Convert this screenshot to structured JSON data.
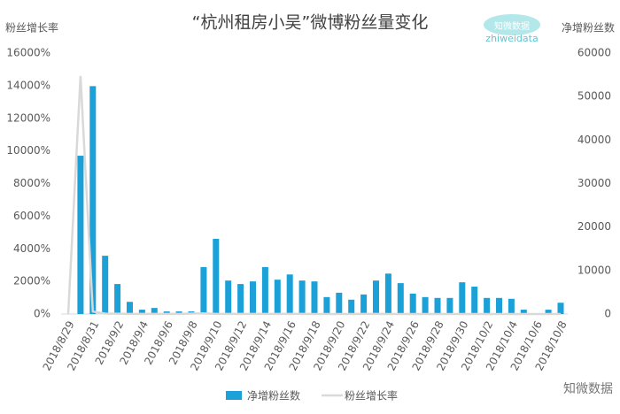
{
  "chart_data": {
    "type": "bar-line",
    "title": "“杭州租房小吴”微博粉丝量变化",
    "y_label": "粉丝增长率",
    "y2_label": "净增粉丝数",
    "categories": [
      "2018/8/29",
      null,
      "2018/8/31",
      null,
      "2018/9/2",
      null,
      "2018/9/4",
      null,
      "2018/9/6",
      null,
      "2018/9/8",
      null,
      "2018/9/10",
      null,
      "2018/9/12",
      null,
      "2018/9/14",
      null,
      "2018/9/16",
      null,
      "2018/9/18",
      null,
      "2018/9/20",
      null,
      "2018/9/22",
      null,
      "2018/9/24",
      null,
      "2018/9/26",
      null,
      "2018/9/28",
      null,
      "2018/9/30",
      null,
      "2018/10/2",
      null,
      "2018/10/4",
      null,
      "2018/10/6",
      null,
      "2018/10/8"
    ],
    "series": [
      {
        "name": "净增粉丝数",
        "type": "bar",
        "axis": "y2",
        "color": "#1ba1d8",
        "values": [
          0,
          36400,
          52400,
          13400,
          6900,
          2800,
          1000,
          1400,
          600,
          600,
          600,
          10800,
          17300,
          7700,
          6900,
          7500,
          10800,
          7900,
          9100,
          7700,
          7500,
          3900,
          4900,
          3300,
          4500,
          7700,
          9300,
          7100,
          4700,
          3900,
          3700,
          3700,
          7300,
          6300,
          3700,
          3700,
          3500,
          1000,
          0,
          1000,
          2600
        ]
      },
      {
        "name": "粉丝增长率",
        "type": "line",
        "axis": "y",
        "color": "#d9d9d9",
        "values": [
          0,
          14600,
          150,
          30,
          20,
          10,
          5,
          5,
          5,
          5,
          30,
          40,
          10,
          5,
          5,
          10,
          5,
          5,
          5,
          5,
          3,
          3,
          3,
          3,
          5,
          5,
          3,
          3,
          2,
          2,
          2,
          3,
          3,
          2,
          2,
          2,
          1,
          0,
          1,
          0,
          1
        ]
      }
    ],
    "ylim": [
      0,
      16000
    ],
    "yticks": [
      {
        "value": 0,
        "label": "0%"
      },
      {
        "value": 2000,
        "label": "2000%"
      },
      {
        "value": 4000,
        "label": "4000%"
      },
      {
        "value": 6000,
        "label": "6000%"
      },
      {
        "value": 8000,
        "label": "8000%"
      },
      {
        "value": 10000,
        "label": "10000%"
      },
      {
        "value": 12000,
        "label": "12000%"
      },
      {
        "value": 14000,
        "label": "14000%"
      },
      {
        "value": 16000,
        "label": "16000%"
      }
    ],
    "y2lim": [
      0,
      60000
    ],
    "y2ticks": [
      0,
      10000,
      20000,
      30000,
      40000,
      50000,
      60000
    ],
    "legend": "bottom"
  },
  "logo": {
    "name": "知微数据",
    "latin": "zhiweidata"
  },
  "watermark": "知微数据"
}
